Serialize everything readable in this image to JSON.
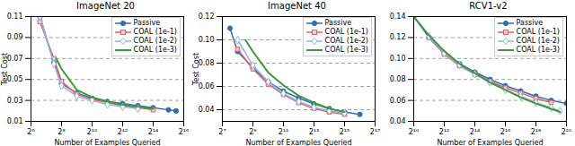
{
  "chart_data": [
    {
      "type": "line",
      "title": "ImageNet 20",
      "xlabel": "Number of Examples Queried",
      "ylabel": "Test Cost",
      "log": "x",
      "grid": true,
      "legend": "upper right",
      "xlim": [
        64,
        65536
      ],
      "xticks": [
        {
          "value": 64,
          "label": "2⁶"
        },
        {
          "value": 256,
          "label": "2⁸"
        },
        {
          "value": 1024,
          "label": "2¹⁰"
        },
        {
          "value": 4096,
          "label": "2¹²"
        },
        {
          "value": 16384,
          "label": "2¹⁴"
        },
        {
          "value": 65536,
          "label": "2¹⁶"
        }
      ],
      "ylim": [
        0.01,
        0.11
      ],
      "yticks": [
        0.01,
        0.03,
        0.05,
        0.07,
        0.09,
        0.11
      ],
      "series": [
        {
          "name": "Passive",
          "color": "#2f6db5",
          "marker": "circle",
          "x": [
            96,
            181,
            256,
            512,
            1024,
            2048,
            4096,
            8192,
            16384,
            32768,
            46341
          ],
          "values": [
            0.11,
            0.066,
            0.046,
            0.037,
            0.032,
            0.029,
            0.027,
            0.025,
            0.023,
            0.021,
            0.02
          ]
        },
        {
          "name": "COAL (1e-1)",
          "color": "#e0605e",
          "marker": "square",
          "x": [
            96,
            181,
            256,
            512,
            1024,
            2048,
            4096,
            8192,
            16384
          ],
          "values": [
            0.105,
            0.07,
            0.048,
            0.036,
            0.031,
            0.028,
            0.025,
            0.023,
            0.021
          ]
        },
        {
          "name": "COAL (1e-2)",
          "color": "#8fb4e3",
          "marker": "diamond",
          "x": [
            96,
            181,
            256,
            512,
            1024,
            2048,
            4096,
            8192
          ],
          "values": [
            0.11,
            0.065,
            0.044,
            0.034,
            0.03,
            0.026,
            0.024,
            0.022
          ]
        },
        {
          "name": "COAL (1e-3)",
          "color": "#3a9a3a",
          "marker": "none",
          "x": [
            200,
            256,
            512,
            1024,
            2048,
            4096,
            8192,
            16384
          ],
          "values": [
            0.07,
            0.06,
            0.04,
            0.033,
            0.029,
            0.026,
            0.024,
            0.022
          ]
        }
      ]
    },
    {
      "type": "line",
      "title": "ImageNet 40",
      "xlabel": "Number of Examples Queried",
      "ylabel": "Test Cost",
      "log": "x",
      "grid": true,
      "legend": "upper right",
      "xlim": [
        128,
        131072
      ],
      "xticks": [
        {
          "value": 128,
          "label": "2⁷"
        },
        {
          "value": 512,
          "label": "2⁹"
        },
        {
          "value": 2048,
          "label": "2¹¹"
        },
        {
          "value": 8192,
          "label": "2¹³"
        },
        {
          "value": 32768,
          "label": "2¹⁵"
        },
        {
          "value": 131072,
          "label": "2¹⁷"
        }
      ],
      "ylim": [
        0.03,
        0.12
      ],
      "yticks": [
        0.04,
        0.06,
        0.08,
        {
          "value": 0.1,
          "label": "0.10"
        },
        0.12
      ],
      "series": [
        {
          "name": "Passive",
          "color": "#2f6db5",
          "marker": "circle",
          "x": [
            181,
            256,
            512,
            1024,
            2048,
            4096,
            8192,
            16384,
            32768,
            65536
          ],
          "values": [
            0.11,
            0.09,
            0.076,
            0.064,
            0.056,
            0.05,
            0.045,
            0.041,
            0.038,
            0.036
          ]
        },
        {
          "name": "COAL (1e-1)",
          "color": "#e0605e",
          "marker": "square",
          "x": [
            256,
            512,
            1024,
            2048,
            4096,
            8192,
            16384,
            32768
          ],
          "values": [
            0.092,
            0.075,
            0.062,
            0.053,
            0.046,
            0.041,
            0.038,
            0.036
          ]
        },
        {
          "name": "COAL (1e-2)",
          "color": "#8fb4e3",
          "marker": "diamond",
          "x": [
            256,
            512,
            1024,
            2048,
            4096,
            8192,
            16384,
            32768
          ],
          "values": [
            0.1,
            0.078,
            0.064,
            0.054,
            0.047,
            0.042,
            0.039,
            0.037
          ]
        },
        {
          "name": "COAL (1e-3)",
          "color": "#3a9a3a",
          "marker": "none",
          "x": [
            362,
            512,
            1024,
            2048,
            4096,
            8192,
            16384,
            32768
          ],
          "values": [
            0.1,
            0.09,
            0.072,
            0.061,
            0.052,
            0.046,
            0.041,
            0.038
          ]
        }
      ]
    },
    {
      "type": "line",
      "title": "RCV1-v2",
      "xlabel": "Number of Examples Queried",
      "log": "x",
      "grid": true,
      "legend": "upper right",
      "xlim": [
        1024,
        1048576
      ],
      "xticks": [
        {
          "value": 1024,
          "label": "2¹⁰"
        },
        {
          "value": 4096,
          "label": "2¹²"
        },
        {
          "value": 16384,
          "label": "2¹⁴"
        },
        {
          "value": 65536,
          "label": "2¹⁶"
        },
        {
          "value": 262144,
          "label": "2¹⁸"
        },
        {
          "value": 1048576,
          "label": "2²⁰"
        }
      ],
      "ylim": [
        0.04,
        0.14
      ],
      "yticks": [
        0.04,
        0.06,
        0.08,
        {
          "value": 0.1,
          "label": "0.10"
        },
        0.12,
        0.14
      ],
      "series": [
        {
          "name": "Passive",
          "color": "#2f6db5",
          "marker": "circle",
          "x": [
            1024,
            2048,
            4096,
            8192,
            16384,
            32768,
            65536,
            131072,
            262144,
            524288,
            1048576
          ],
          "values": [
            0.14,
            0.12,
            0.105,
            0.095,
            0.087,
            0.08,
            0.074,
            0.069,
            0.064,
            0.06,
            0.057
          ]
        },
        {
          "name": "COAL (1e-1)",
          "color": "#e0605e",
          "marker": "square",
          "x": [
            2048,
            4096,
            8192,
            16384,
            32768,
            65536,
            131072,
            262144,
            524288
          ],
          "values": [
            0.12,
            0.104,
            0.093,
            0.085,
            0.078,
            0.072,
            0.067,
            0.062,
            0.058
          ]
        },
        {
          "name": "COAL (1e-2)",
          "color": "#8fb4e3",
          "marker": "diamond",
          "x": [
            2048,
            4096,
            8192,
            16384,
            32768,
            65536,
            131072,
            262144,
            524288,
            786432
          ],
          "values": [
            0.121,
            0.105,
            0.094,
            0.085,
            0.077,
            0.07,
            0.064,
            0.058,
            0.053,
            0.05
          ]
        },
        {
          "name": "COAL (1e-3)",
          "color": "#3a9a3a",
          "marker": "none",
          "x": [
            1024,
            2048,
            4096,
            8192,
            16384,
            32768,
            65536,
            131072,
            262144,
            524288,
            786432
          ],
          "values": [
            0.14,
            0.122,
            0.107,
            0.095,
            0.086,
            0.077,
            0.07,
            0.063,
            0.057,
            0.052,
            0.049
          ]
        }
      ]
    }
  ]
}
